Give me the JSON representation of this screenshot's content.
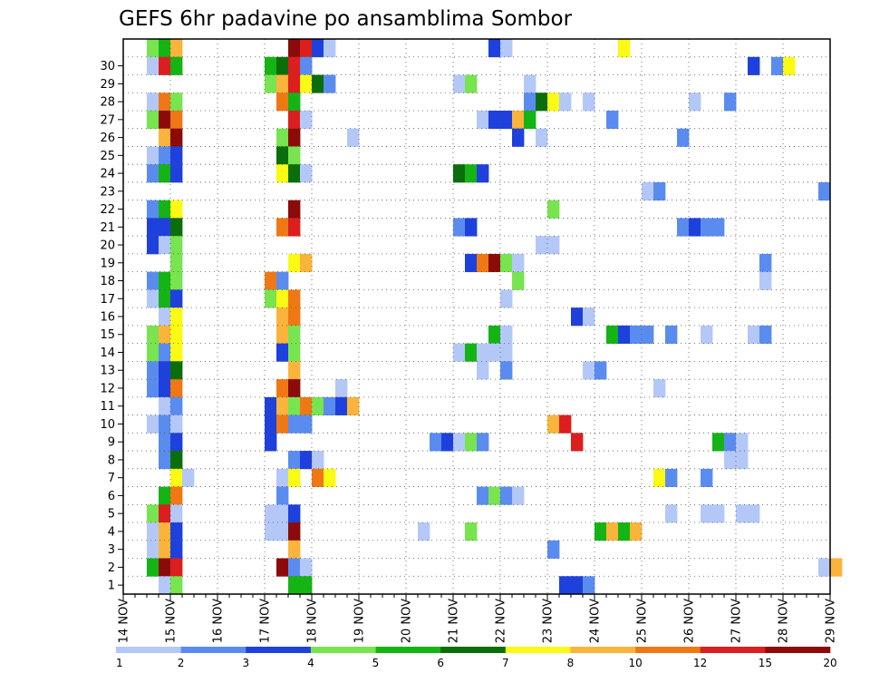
{
  "chart_data": {
    "type": "heatmap",
    "title": "GEFS 6hr padavine po ansamblima Sombor",
    "xlabel": "",
    "ylabel": "",
    "x_tick_labels": [
      "14 NOV",
      "15 NOV",
      "16 NOV",
      "17 NOV",
      "18 NOV",
      "19 NOV",
      "20 NOV",
      "21 NOV",
      "22 NOV",
      "23 NOV",
      "24 NOV",
      "25 NOV",
      "26 NOV",
      "27 NOV",
      "28 NOV",
      "29 NOV"
    ],
    "x_steps_per_day": 4,
    "y_tick_labels": [
      "1",
      "2",
      "3",
      "4",
      "5",
      "6",
      "7",
      "8",
      "9",
      "10",
      "11",
      "12",
      "13",
      "14",
      "15",
      "16",
      "17",
      "18",
      "19",
      "20",
      "21",
      "22",
      "23",
      "24",
      "25",
      "26",
      "27",
      "28",
      "29",
      "30"
    ],
    "grid": true,
    "colorbar": {
      "labels": [
        "1",
        "2",
        "3",
        "4",
        "5",
        "6",
        "7",
        "8",
        "10",
        "12",
        "15",
        "20"
      ],
      "colors": [
        "#b4c8f8",
        "#5a8cf0",
        "#1e40dc",
        "#78e450",
        "#14b414",
        "#0a6e0a",
        "#fafa14",
        "#fab43c",
        "#f07814",
        "#dc1e1e",
        "#8c0a0a"
      ]
    },
    "cells": [
      {
        "m": 30,
        "c": [
          [
            2,
            3
          ],
          [
            3,
            4
          ],
          [
            4,
            7
          ],
          [
            14,
            10
          ],
          [
            15,
            9
          ],
          [
            16,
            2
          ],
          [
            17,
            0
          ],
          [
            31,
            2
          ],
          [
            32,
            0
          ],
          [
            42,
            6
          ]
        ]
      },
      {
        "m": 29,
        "c": [
          [
            2,
            0
          ],
          [
            3,
            9
          ],
          [
            4,
            4
          ],
          [
            12,
            4
          ],
          [
            13,
            5
          ],
          [
            14,
            9
          ],
          [
            15,
            1
          ],
          [
            53,
            2
          ],
          [
            55,
            1
          ],
          [
            56,
            6
          ]
        ]
      },
      {
        "m": 28,
        "c": [
          [
            12,
            3
          ],
          [
            13,
            7
          ],
          [
            14,
            9
          ],
          [
            15,
            6
          ],
          [
            16,
            5
          ],
          [
            17,
            1
          ],
          [
            28,
            0
          ],
          [
            29,
            3
          ],
          [
            34,
            0
          ]
        ]
      },
      {
        "m": 27,
        "c": [
          [
            2,
            0
          ],
          [
            3,
            8
          ],
          [
            4,
            3
          ],
          [
            13,
            8
          ],
          [
            14,
            4
          ],
          [
            34,
            1
          ],
          [
            35,
            5
          ],
          [
            36,
            6
          ],
          [
            37,
            0
          ],
          [
            39,
            0
          ],
          [
            48,
            0
          ],
          [
            51,
            1
          ]
        ]
      },
      {
        "m": 26,
        "c": [
          [
            2,
            3
          ],
          [
            3,
            10
          ],
          [
            4,
            8
          ],
          [
            14,
            9
          ],
          [
            15,
            0
          ],
          [
            30,
            0
          ],
          [
            31,
            2
          ],
          [
            32,
            2
          ],
          [
            33,
            7
          ],
          [
            34,
            4
          ],
          [
            41,
            1
          ]
        ]
      },
      {
        "m": 25,
        "c": [
          [
            3,
            7
          ],
          [
            4,
            10
          ],
          [
            13,
            3
          ],
          [
            14,
            10
          ],
          [
            19,
            0
          ],
          [
            33,
            2
          ],
          [
            35,
            0
          ],
          [
            47,
            1
          ]
        ]
      },
      {
        "m": 24,
        "c": [
          [
            2,
            0
          ],
          [
            3,
            1
          ],
          [
            4,
            2
          ],
          [
            13,
            5
          ],
          [
            14,
            3
          ]
        ]
      },
      {
        "m": 23,
        "c": [
          [
            2,
            1
          ],
          [
            3,
            4
          ],
          [
            4,
            2
          ],
          [
            13,
            6
          ],
          [
            14,
            5
          ],
          [
            15,
            0
          ],
          [
            28,
            5
          ],
          [
            29,
            4
          ],
          [
            30,
            2
          ]
        ]
      },
      {
        "m": 22,
        "c": [
          [
            44,
            0
          ],
          [
            45,
            1
          ],
          [
            59,
            1
          ]
        ]
      },
      {
        "m": 21,
        "c": [
          [
            2,
            1
          ],
          [
            3,
            4
          ],
          [
            4,
            6
          ],
          [
            14,
            10
          ],
          [
            36,
            3
          ]
        ]
      },
      {
        "m": 20,
        "c": [
          [
            2,
            2
          ],
          [
            3,
            2
          ],
          [
            4,
            5
          ],
          [
            13,
            8
          ],
          [
            14,
            9
          ],
          [
            28,
            1
          ],
          [
            29,
            2
          ],
          [
            47,
            1
          ],
          [
            48,
            2
          ],
          [
            49,
            1
          ],
          [
            50,
            1
          ]
        ]
      },
      {
        "m": 19,
        "c": [
          [
            2,
            2
          ],
          [
            3,
            0
          ],
          [
            4,
            3
          ],
          [
            35,
            0
          ],
          [
            36,
            0
          ]
        ]
      },
      {
        "m": 18,
        "c": [
          [
            4,
            3
          ],
          [
            14,
            6
          ],
          [
            15,
            7
          ],
          [
            29,
            2
          ],
          [
            30,
            8
          ],
          [
            31,
            10
          ],
          [
            32,
            3
          ],
          [
            33,
            0
          ],
          [
            54,
            1
          ]
        ]
      },
      {
        "m": 17,
        "c": [
          [
            2,
            1
          ],
          [
            3,
            4
          ],
          [
            4,
            3
          ],
          [
            12,
            8
          ],
          [
            13,
            1
          ],
          [
            33,
            3
          ],
          [
            54,
            0
          ]
        ]
      },
      {
        "m": 16,
        "c": [
          [
            2,
            0
          ],
          [
            3,
            4
          ],
          [
            4,
            2
          ],
          [
            12,
            3
          ],
          [
            13,
            6
          ],
          [
            14,
            8
          ],
          [
            32,
            0
          ]
        ]
      },
      {
        "m": 15,
        "c": [
          [
            3,
            0
          ],
          [
            4,
            6
          ],
          [
            13,
            7
          ],
          [
            14,
            8
          ],
          [
            38,
            2
          ],
          [
            39,
            0
          ]
        ]
      },
      {
        "m": 14,
        "c": [
          [
            2,
            3
          ],
          [
            3,
            7
          ],
          [
            4,
            6
          ],
          [
            13,
            7
          ],
          [
            14,
            3
          ],
          [
            31,
            4
          ],
          [
            32,
            0
          ],
          [
            41,
            4
          ],
          [
            42,
            2
          ],
          [
            43,
            1
          ],
          [
            44,
            1
          ],
          [
            46,
            1
          ],
          [
            49,
            0
          ],
          [
            53,
            0
          ],
          [
            54,
            1
          ]
        ]
      },
      {
        "m": 13,
        "c": [
          [
            2,
            3
          ],
          [
            3,
            1
          ],
          [
            4,
            6
          ],
          [
            13,
            2
          ],
          [
            14,
            3
          ],
          [
            28,
            0
          ],
          [
            29,
            4
          ],
          [
            30,
            0
          ],
          [
            31,
            0
          ],
          [
            32,
            0
          ]
        ]
      },
      {
        "m": 12,
        "c": [
          [
            2,
            1
          ],
          [
            3,
            2
          ],
          [
            4,
            5
          ],
          [
            14,
            7
          ],
          [
            30,
            0
          ],
          [
            32,
            1
          ],
          [
            39,
            0
          ],
          [
            40,
            1
          ]
        ]
      },
      {
        "m": 11,
        "c": [
          [
            2,
            1
          ],
          [
            3,
            2
          ],
          [
            4,
            8
          ],
          [
            13,
            8
          ],
          [
            14,
            10
          ],
          [
            18,
            0
          ],
          [
            45,
            0
          ]
        ]
      },
      {
        "m": 10,
        "c": [
          [
            3,
            0
          ],
          [
            4,
            1
          ],
          [
            12,
            2
          ],
          [
            13,
            7
          ],
          [
            14,
            3
          ],
          [
            15,
            8
          ],
          [
            16,
            3
          ],
          [
            17,
            1
          ],
          [
            18,
            2
          ],
          [
            19,
            7
          ]
        ]
      },
      {
        "m": 9,
        "c": [
          [
            2,
            0
          ],
          [
            3,
            1
          ],
          [
            4,
            0
          ],
          [
            12,
            2
          ],
          [
            13,
            8
          ],
          [
            14,
            1
          ],
          [
            15,
            1
          ],
          [
            36,
            7
          ],
          [
            37,
            9
          ]
        ]
      },
      {
        "m": 8,
        "c": [
          [
            3,
            1
          ],
          [
            4,
            2
          ],
          [
            12,
            2
          ],
          [
            26,
            1
          ],
          [
            27,
            2
          ],
          [
            28,
            0
          ],
          [
            29,
            3
          ],
          [
            30,
            1
          ],
          [
            38,
            9
          ],
          [
            50,
            4
          ],
          [
            51,
            1
          ],
          [
            52,
            0
          ]
        ]
      },
      {
        "m": 7,
        "c": [
          [
            3,
            1
          ],
          [
            4,
            5
          ],
          [
            14,
            1
          ],
          [
            15,
            2
          ],
          [
            16,
            0
          ],
          [
            51,
            0
          ],
          [
            52,
            0
          ]
        ]
      },
      {
        "m": 6,
        "c": [
          [
            4,
            6
          ],
          [
            5,
            0
          ],
          [
            13,
            0
          ],
          [
            14,
            6
          ],
          [
            16,
            8
          ],
          [
            17,
            6
          ],
          [
            45,
            6
          ],
          [
            46,
            1
          ],
          [
            49,
            1
          ]
        ]
      },
      {
        "m": 5,
        "c": [
          [
            3,
            4
          ],
          [
            4,
            8
          ],
          [
            13,
            1
          ],
          [
            30,
            1
          ],
          [
            31,
            3
          ],
          [
            32,
            1
          ],
          [
            33,
            0
          ]
        ]
      },
      {
        "m": 4,
        "c": [
          [
            2,
            3
          ],
          [
            3,
            9
          ],
          [
            4,
            0
          ],
          [
            12,
            0
          ],
          [
            13,
            0
          ],
          [
            14,
            2
          ],
          [
            46,
            0
          ],
          [
            49,
            0
          ],
          [
            50,
            0
          ],
          [
            52,
            0
          ],
          [
            53,
            0
          ]
        ]
      },
      {
        "m": 3,
        "c": [
          [
            2,
            0
          ],
          [
            3,
            7
          ],
          [
            4,
            2
          ],
          [
            12,
            0
          ],
          [
            13,
            0
          ],
          [
            14,
            10
          ],
          [
            25,
            0
          ],
          [
            29,
            3
          ],
          [
            40,
            4
          ],
          [
            41,
            7
          ],
          [
            42,
            4
          ],
          [
            43,
            7
          ]
        ]
      },
      {
        "m": 2,
        "c": [
          [
            2,
            0
          ],
          [
            3,
            7
          ],
          [
            4,
            2
          ],
          [
            14,
            7
          ],
          [
            36,
            1
          ]
        ]
      },
      {
        "m": 1,
        "c": [
          [
            2,
            4
          ],
          [
            3,
            10
          ],
          [
            4,
            9
          ],
          [
            13,
            10
          ],
          [
            14,
            1
          ],
          [
            15,
            0
          ],
          [
            59,
            0
          ],
          [
            60,
            7
          ]
        ]
      },
      {
        "m": 0,
        "c": [
          [
            3,
            0
          ],
          [
            4,
            3
          ],
          [
            14,
            4
          ],
          [
            15,
            4
          ],
          [
            37,
            2
          ],
          [
            38,
            2
          ],
          [
            39,
            1
          ]
        ]
      }
    ]
  }
}
